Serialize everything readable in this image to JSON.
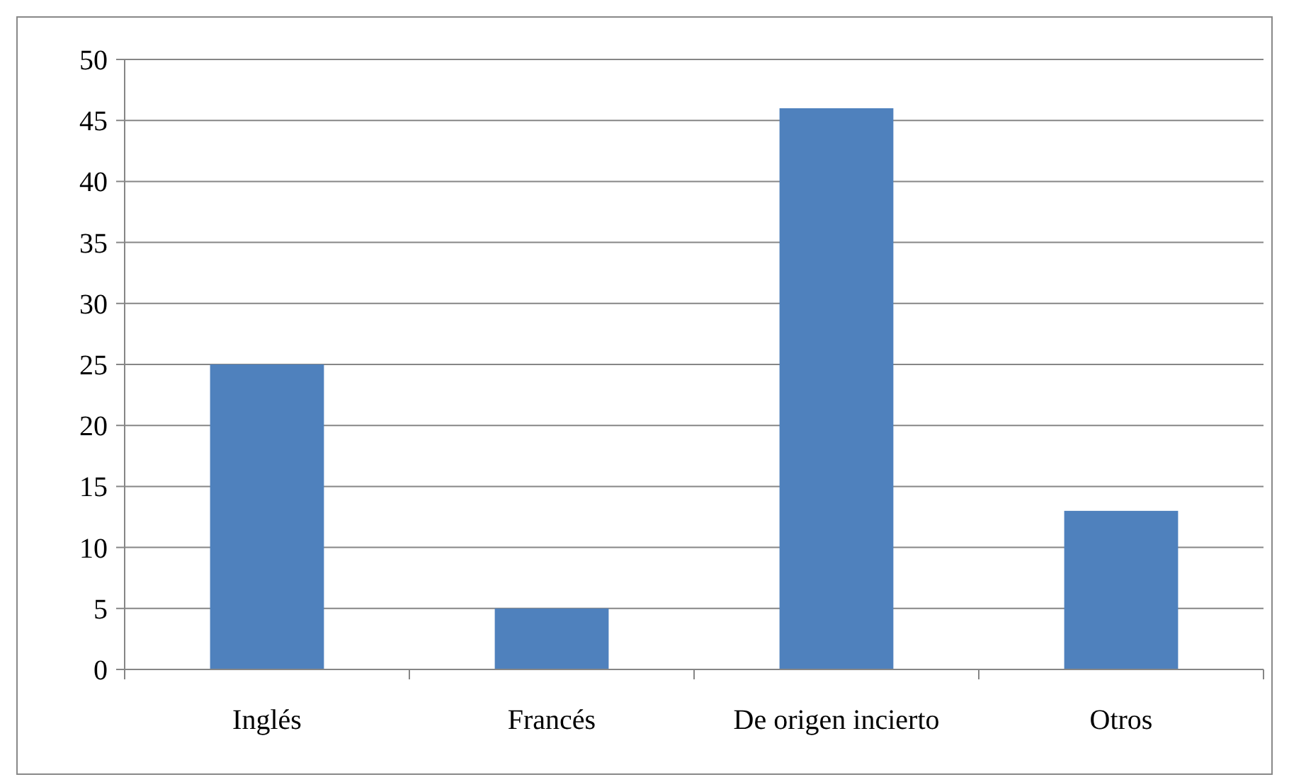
{
  "chart_data": {
    "type": "bar",
    "categories": [
      "Inglés",
      "Francés",
      "De origen incierto",
      "Otros"
    ],
    "values": [
      25,
      5,
      46,
      13
    ],
    "color": "#4f81bd",
    "ylim": [
      0,
      50
    ],
    "yticks": [
      0,
      5,
      10,
      15,
      20,
      25,
      30,
      35,
      40,
      45,
      50
    ],
    "grid": "y"
  }
}
